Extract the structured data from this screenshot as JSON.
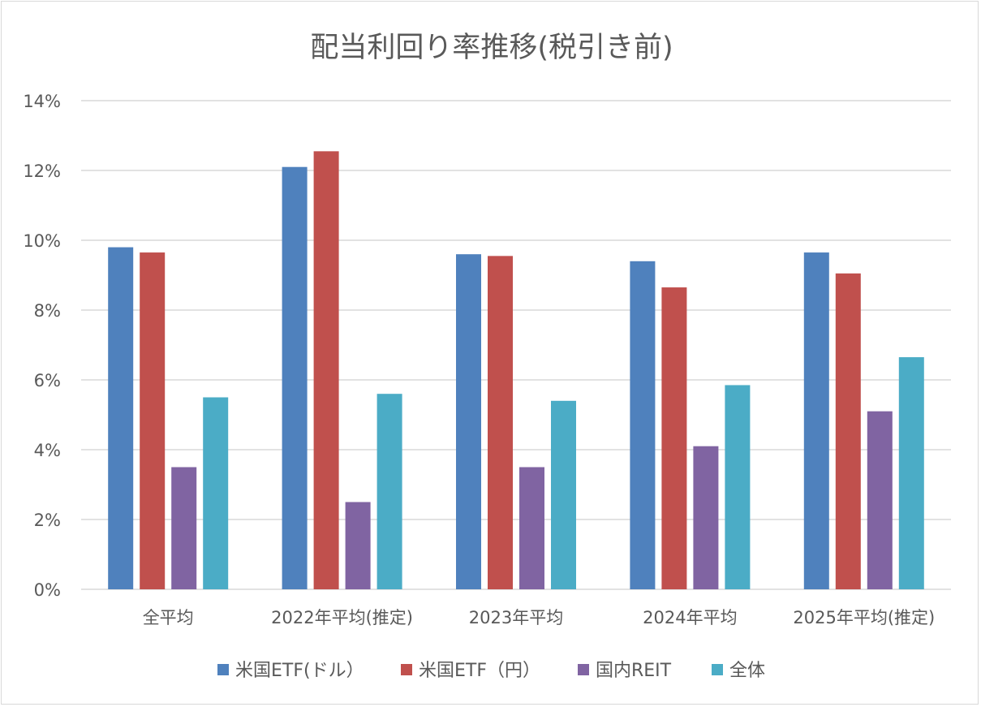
{
  "chart_data": {
    "type": "bar",
    "title": "配当利回り率推移(税引き前)",
    "categories": [
      "全平均",
      "2022年平均(推定)",
      "2023年平均",
      "2024年平均",
      "2025年平均(推定)"
    ],
    "series": [
      {
        "name": "米国ETF(ドル）",
        "color": "#4f81bd",
        "values": [
          9.8,
          12.1,
          9.6,
          9.4,
          9.65
        ]
      },
      {
        "name": "米国ETF（円）",
        "color": "#c0504d",
        "values": [
          9.65,
          12.55,
          9.55,
          8.65,
          9.05
        ]
      },
      {
        "name": "国内REIT",
        "color": "#8064a2",
        "values": [
          3.5,
          2.5,
          3.5,
          4.1,
          5.1
        ]
      },
      {
        "name": "全体",
        "color": "#4bacc6",
        "values": [
          5.5,
          5.6,
          5.4,
          5.85,
          6.65
        ]
      }
    ],
    "ylim": [
      0,
      14
    ],
    "yticks": [
      0,
      2,
      4,
      6,
      8,
      10,
      12,
      14
    ],
    "ytick_labels": [
      "0%",
      "2%",
      "4%",
      "6%",
      "8%",
      "10%",
      "12%",
      "14%"
    ],
    "xlabel": "",
    "ylabel": "",
    "grid": true,
    "legend_position": "bottom"
  }
}
